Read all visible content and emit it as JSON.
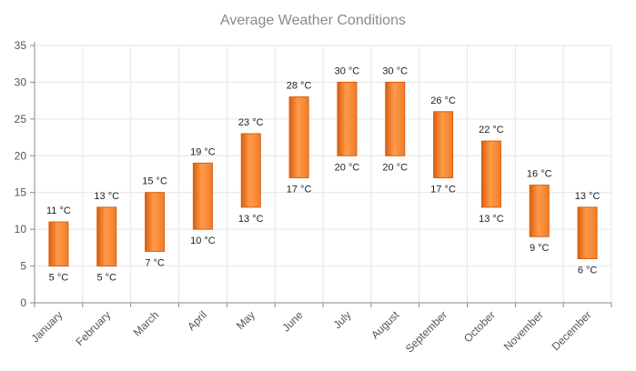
{
  "chart_data": {
    "type": "bar",
    "subtype": "range-column",
    "title": "Average Weather Conditions",
    "xlabel": "",
    "ylabel": "",
    "ylim": [
      0,
      35
    ],
    "yticks": [
      0,
      5,
      10,
      15,
      20,
      25,
      30,
      35
    ],
    "grid": true,
    "legend": "none",
    "unit_suffix": " °C",
    "categories": [
      "January",
      "February",
      "March",
      "April",
      "May",
      "June",
      "July",
      "August",
      "September",
      "October",
      "November",
      "December"
    ],
    "series": [
      {
        "low": [
          5,
          5,
          7,
          10,
          13,
          17,
          20,
          20,
          17,
          13,
          9,
          6
        ],
        "high": [
          11,
          13,
          15,
          19,
          23,
          28,
          30,
          30,
          26,
          22,
          16,
          13
        ],
        "color": "#f07d28",
        "color_light": "#ff9a4a",
        "color_dark": "#d85f0e"
      }
    ]
  }
}
